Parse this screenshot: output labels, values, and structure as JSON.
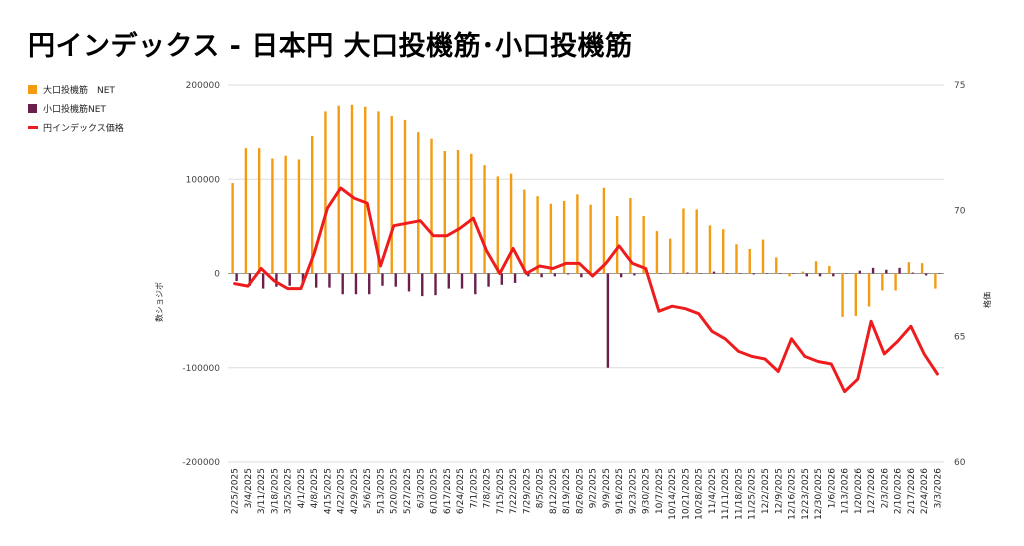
{
  "chart_data": {
    "type": "bar",
    "title": "円インデックス - 日本円 大口投機筋･小口投機筋",
    "ylabel": "数ショジボ",
    "y2label": "格価",
    "ylim": [
      -200000,
      200000
    ],
    "y2lim": [
      60,
      75
    ],
    "yticks": [
      200000,
      100000,
      0,
      -100000,
      -200000
    ],
    "yticklabels": [
      "200000",
      "100000",
      "0",
      "-100000",
      "-200000"
    ],
    "y2ticks": [
      75,
      70,
      65,
      60
    ],
    "grid": true,
    "legend_position": "top-left",
    "categories": [
      "2/25/2025",
      "3/4/2025",
      "3/11/2025",
      "3/18/2025",
      "3/25/2025",
      "4/1/2025",
      "4/8/2025",
      "4/15/2025",
      "4/22/2025",
      "4/29/2025",
      "5/6/2025",
      "5/13/2025",
      "5/20/2025",
      "5/27/2025",
      "6/3/2025",
      "6/10/2025",
      "6/17/2025",
      "6/24/2025",
      "7/1/2025",
      "7/8/2025",
      "7/15/2025",
      "7/22/2025",
      "7/29/2025",
      "8/5/2025",
      "8/12/2025",
      "8/19/2025",
      "8/26/2025",
      "9/2/2025",
      "9/9/2025",
      "9/16/2025",
      "9/23/2025",
      "9/30/2025",
      "10/7/2025",
      "10/14/2025",
      "10/21/2025",
      "10/28/2025",
      "11/4/2025",
      "11/11/2025",
      "11/18/2025",
      "11/25/2025",
      "12/2/2025",
      "12/9/2025",
      "12/16/2025",
      "12/23/2025",
      "12/30/2025",
      "1/6/2026",
      "1/13/2026",
      "1/20/2026",
      "1/27/2026",
      "2/3/2026",
      "2/10/2026",
      "2/17/2026",
      "2/24/2026",
      "3/3/2026"
    ],
    "series": [
      {
        "name": "大口投機筋　NET",
        "type": "bar",
        "axis": "left",
        "color": "#f39c12",
        "values": [
          96000,
          133000,
          133000,
          122000,
          125000,
          121000,
          146000,
          172000,
          178000,
          179000,
          177000,
          172000,
          167000,
          163000,
          150000,
          143000,
          130000,
          131000,
          127000,
          115000,
          103000,
          106000,
          89000,
          82000,
          74000,
          77000,
          84000,
          73000,
          91000,
          61000,
          80000,
          61000,
          45000,
          37000,
          69000,
          68000,
          51000,
          47000,
          31000,
          26000,
          36000,
          17000,
          -3000,
          2000,
          13000,
          8000,
          -46000,
          -45000,
          -35000,
          -18000,
          -18000,
          12000,
          11000,
          -16000
        ]
      },
      {
        "name": "小口投機筋NET",
        "type": "bar",
        "axis": "left",
        "color": "#6b1f4c",
        "values": [
          -8000,
          -13000,
          -16000,
          -14000,
          -13000,
          -12000,
          -15000,
          -15000,
          -22000,
          -22000,
          -22000,
          -13000,
          -14000,
          -19000,
          -24000,
          -23000,
          -16000,
          -16000,
          -22000,
          -14000,
          -12000,
          -10000,
          -3000,
          -4000,
          -3000,
          -1000,
          -4000,
          -1000,
          -100000,
          -4000,
          -2000,
          -1000,
          -500,
          -500,
          1000,
          -500,
          2000,
          -500,
          -500,
          -1000,
          -500,
          -500,
          -500,
          -3000,
          -3000,
          -3000,
          -500,
          3000,
          6000,
          4000,
          6000,
          1000,
          -2000,
          -500
        ]
      },
      {
        "name": "円インデックス価格",
        "type": "line",
        "axis": "right",
        "color": "#ee1c1c",
        "values": [
          67.1,
          67.0,
          67.7,
          67.2,
          66.9,
          66.9,
          68.3,
          70.1,
          70.9,
          70.5,
          70.3,
          67.8,
          69.4,
          69.5,
          69.6,
          69.0,
          69.0,
          69.3,
          69.7,
          68.4,
          67.5,
          68.5,
          67.5,
          67.8,
          67.7,
          67.9,
          67.9,
          67.4,
          67.9,
          68.6,
          67.9,
          67.7,
          66.0,
          66.2,
          66.1,
          65.9,
          65.2,
          64.9,
          64.4,
          64.2,
          64.1,
          63.6,
          64.9,
          64.2,
          64.0,
          63.9,
          62.8,
          63.3,
          65.6,
          64.3,
          64.8,
          65.4,
          64.3,
          63.5
        ]
      }
    ]
  }
}
